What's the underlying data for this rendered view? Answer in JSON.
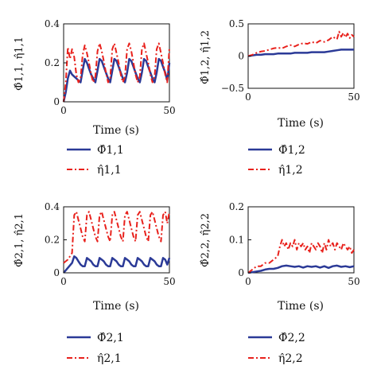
{
  "colors": {
    "phi": "#2b3a97",
    "eta": "#e8211c",
    "axis": "#111111"
  },
  "chart_data": [
    {
      "type": "line",
      "ylabel": "Φ̂1,1, η̂1,1",
      "xlabel": "Time (s)",
      "xlim": [
        0,
        50
      ],
      "ylim": [
        0,
        0.4
      ],
      "xticks": [
        "0",
        "50"
      ],
      "yticks": [
        "0",
        "0.2",
        "0.4"
      ],
      "legend": [
        "Φ̂1,1",
        "η̂1,1"
      ],
      "series": [
        {
          "name": "Φ̂1,1",
          "style": "solid",
          "x": [
            0,
            1,
            2,
            3,
            4,
            5,
            6,
            7,
            8,
            9,
            10,
            11,
            12,
            13,
            14,
            15,
            16,
            17,
            18,
            19,
            20,
            21,
            22,
            23,
            24,
            25,
            26,
            27,
            28,
            29,
            30,
            31,
            32,
            33,
            34,
            35,
            36,
            37,
            38,
            39,
            40,
            41,
            42,
            43,
            44,
            45,
            46,
            47,
            48,
            49,
            50
          ],
          "y": [
            0,
            0.05,
            0.12,
            0.16,
            0.14,
            0.13,
            0.12,
            0.11,
            0.1,
            0.16,
            0.22,
            0.2,
            0.17,
            0.14,
            0.12,
            0.1,
            0.16,
            0.22,
            0.21,
            0.18,
            0.15,
            0.12,
            0.1,
            0.16,
            0.22,
            0.21,
            0.18,
            0.15,
            0.12,
            0.1,
            0.15,
            0.22,
            0.21,
            0.18,
            0.15,
            0.12,
            0.1,
            0.15,
            0.22,
            0.21,
            0.18,
            0.15,
            0.12,
            0.1,
            0.15,
            0.22,
            0.21,
            0.18,
            0.15,
            0.11,
            0.2
          ]
        },
        {
          "name": "η̂1,1",
          "style": "dashdot",
          "x": [
            0,
            1,
            2,
            3,
            4,
            5,
            6,
            7,
            8,
            9,
            10,
            11,
            12,
            13,
            14,
            15,
            16,
            17,
            18,
            19,
            20,
            21,
            22,
            23,
            24,
            25,
            26,
            27,
            28,
            29,
            30,
            31,
            32,
            33,
            34,
            35,
            36,
            37,
            38,
            39,
            40,
            41,
            42,
            43,
            44,
            45,
            46,
            47,
            48,
            49,
            50
          ],
          "y": [
            0,
            0.1,
            0.28,
            0.22,
            0.27,
            0.23,
            0.14,
            0.1,
            0.12,
            0.24,
            0.29,
            0.25,
            0.2,
            0.14,
            0.1,
            0.13,
            0.26,
            0.3,
            0.26,
            0.21,
            0.15,
            0.1,
            0.12,
            0.27,
            0.3,
            0.25,
            0.2,
            0.14,
            0.1,
            0.13,
            0.27,
            0.3,
            0.26,
            0.2,
            0.14,
            0.1,
            0.13,
            0.27,
            0.3,
            0.25,
            0.2,
            0.14,
            0.1,
            0.13,
            0.27,
            0.3,
            0.25,
            0.2,
            0.14,
            0.1,
            0.28
          ]
        }
      ]
    },
    {
      "type": "line",
      "ylabel": "Φ̂1,2, η̂1,2",
      "xlabel": "Time (s)",
      "xlim": [
        0,
        50
      ],
      "ylim": [
        -0.5,
        0.5
      ],
      "xticks": [
        "0",
        "50"
      ],
      "yticks": [
        "−0.5",
        "0",
        "0.5"
      ],
      "legend": [
        "Φ̂1,2",
        "η̂1,2"
      ],
      "series": [
        {
          "name": "Φ̂1,2",
          "style": "solid",
          "x": [
            0,
            2,
            4,
            6,
            8,
            10,
            12,
            14,
            16,
            18,
            20,
            22,
            24,
            26,
            28,
            30,
            32,
            34,
            36,
            38,
            40,
            42,
            44,
            46,
            48,
            50
          ],
          "y": [
            0,
            0.01,
            0.02,
            0.02,
            0.03,
            0.03,
            0.03,
            0.04,
            0.04,
            0.04,
            0.04,
            0.05,
            0.05,
            0.05,
            0.05,
            0.06,
            0.06,
            0.06,
            0.06,
            0.07,
            0.08,
            0.09,
            0.1,
            0.1,
            0.1,
            0.1
          ]
        },
        {
          "name": "η̂1,2",
          "style": "dashdot",
          "x": [
            0,
            2,
            4,
            6,
            8,
            10,
            12,
            14,
            16,
            18,
            20,
            22,
            24,
            26,
            28,
            30,
            32,
            34,
            36,
            38,
            40,
            42,
            43,
            44,
            45,
            46,
            47,
            48,
            49,
            50
          ],
          "y": [
            0,
            0.02,
            0.05,
            0.07,
            0.08,
            0.1,
            0.12,
            0.13,
            0.12,
            0.15,
            0.17,
            0.15,
            0.18,
            0.2,
            0.19,
            0.22,
            0.2,
            0.24,
            0.22,
            0.25,
            0.3,
            0.26,
            0.38,
            0.3,
            0.36,
            0.29,
            0.35,
            0.28,
            0.33,
            0.3
          ]
        }
      ]
    },
    {
      "type": "line",
      "ylabel": "Φ̂2,1, η̂2,1",
      "xlabel": "Time (s)",
      "xlim": [
        0,
        50
      ],
      "ylim": [
        0,
        0.4
      ],
      "xticks": [
        "0",
        "50"
      ],
      "yticks": [
        "0",
        "0.2",
        "0.4"
      ],
      "legend": [
        "Φ̂2,1",
        "η̂2,1"
      ],
      "series": [
        {
          "name": "Φ̂2,1",
          "style": "solid",
          "x": [
            0,
            2,
            4,
            5,
            6,
            7,
            8,
            9,
            10,
            11,
            12,
            13,
            14,
            15,
            16,
            17,
            18,
            19,
            20,
            21,
            22,
            23,
            24,
            25,
            26,
            27,
            28,
            29,
            30,
            31,
            32,
            33,
            34,
            35,
            36,
            37,
            38,
            39,
            40,
            41,
            42,
            43,
            44,
            45,
            46,
            47,
            48,
            49,
            50
          ],
          "y": [
            0,
            0.03,
            0.06,
            0.1,
            0.09,
            0.07,
            0.05,
            0.04,
            0.04,
            0.09,
            0.08,
            0.07,
            0.05,
            0.04,
            0.04,
            0.09,
            0.08,
            0.07,
            0.05,
            0.04,
            0.04,
            0.09,
            0.08,
            0.07,
            0.05,
            0.04,
            0.04,
            0.09,
            0.08,
            0.07,
            0.05,
            0.04,
            0.04,
            0.09,
            0.08,
            0.07,
            0.05,
            0.04,
            0.04,
            0.09,
            0.08,
            0.07,
            0.05,
            0.04,
            0.04,
            0.09,
            0.08,
            0.05,
            0.09
          ]
        },
        {
          "name": "η̂2,1",
          "style": "dashdot",
          "x": [
            0,
            2,
            4,
            5,
            6,
            7,
            8,
            9,
            10,
            11,
            12,
            13,
            14,
            15,
            16,
            17,
            18,
            19,
            20,
            21,
            22,
            23,
            24,
            25,
            26,
            27,
            28,
            29,
            30,
            31,
            32,
            33,
            34,
            35,
            36,
            37,
            38,
            39,
            40,
            41,
            42,
            43,
            44,
            45,
            46,
            47,
            48,
            49,
            50
          ],
          "y": [
            0.06,
            0.08,
            0.12,
            0.35,
            0.37,
            0.32,
            0.27,
            0.22,
            0.19,
            0.35,
            0.37,
            0.32,
            0.27,
            0.22,
            0.19,
            0.35,
            0.37,
            0.32,
            0.27,
            0.22,
            0.19,
            0.35,
            0.37,
            0.32,
            0.27,
            0.22,
            0.19,
            0.35,
            0.37,
            0.32,
            0.27,
            0.22,
            0.19,
            0.35,
            0.37,
            0.32,
            0.27,
            0.22,
            0.19,
            0.35,
            0.37,
            0.32,
            0.27,
            0.22,
            0.19,
            0.35,
            0.37,
            0.3,
            0.37
          ]
        }
      ]
    },
    {
      "type": "line",
      "ylabel": "Φ̂2,2, η̂2,2",
      "xlabel": "Time (s)",
      "xlim": [
        0,
        50
      ],
      "ylim": [
        0,
        0.2
      ],
      "xticks": [
        "0",
        "50"
      ],
      "yticks": [
        "0",
        "0.1",
        "0.2"
      ],
      "legend": [
        "Φ̂2,2",
        "η̂2,2"
      ],
      "series": [
        {
          "name": "Φ̂2,2",
          "style": "solid",
          "x": [
            0,
            2,
            4,
            6,
            8,
            10,
            12,
            14,
            16,
            18,
            20,
            22,
            24,
            26,
            28,
            30,
            32,
            34,
            36,
            38,
            40,
            42,
            44,
            46,
            48,
            50
          ],
          "y": [
            0,
            0.002,
            0.004,
            0.006,
            0.01,
            0.012,
            0.012,
            0.015,
            0.02,
            0.022,
            0.02,
            0.018,
            0.02,
            0.016,
            0.02,
            0.018,
            0.02,
            0.016,
            0.02,
            0.015,
            0.02,
            0.022,
            0.018,
            0.02,
            0.017,
            0.02
          ]
        },
        {
          "name": "η̂2,2",
          "style": "dashdot",
          "x": [
            0,
            2,
            4,
            6,
            8,
            10,
            12,
            14,
            15,
            16,
            17,
            18,
            19,
            20,
            21,
            22,
            23,
            24,
            25,
            26,
            27,
            28,
            29,
            30,
            31,
            32,
            33,
            34,
            35,
            36,
            37,
            38,
            39,
            40,
            41,
            42,
            43,
            44,
            45,
            46,
            47,
            48,
            49,
            50
          ],
          "y": [
            0,
            0.01,
            0.02,
            0.02,
            0.03,
            0.03,
            0.04,
            0.05,
            0.08,
            0.1,
            0.08,
            0.09,
            0.07,
            0.09,
            0.08,
            0.1,
            0.07,
            0.09,
            0.08,
            0.09,
            0.07,
            0.08,
            0.06,
            0.09,
            0.08,
            0.07,
            0.09,
            0.08,
            0.06,
            0.09,
            0.07,
            0.1,
            0.08,
            0.09,
            0.07,
            0.09,
            0.08,
            0.07,
            0.09,
            0.08,
            0.07,
            0.08,
            0.06,
            0.07
          ]
        }
      ]
    }
  ]
}
